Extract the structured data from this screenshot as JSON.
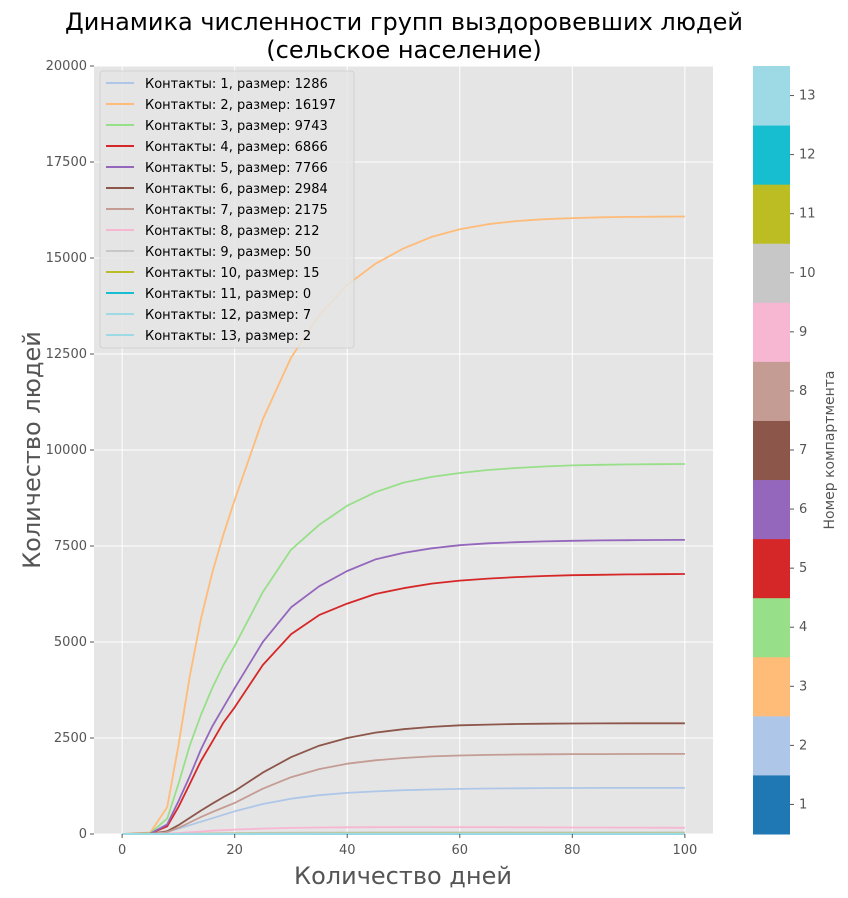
{
  "chart_data": {
    "type": "line",
    "title_line1": "Динамика численности групп выздоровевших людей",
    "title_line2": "(сельское население)",
    "xlabel": "Количество дней",
    "ylabel": "Количество людей",
    "xlim": [
      -5,
      105
    ],
    "ylim": [
      0,
      20000
    ],
    "xticks": [
      0,
      20,
      40,
      60,
      80,
      100
    ],
    "yticks": [
      0,
      2500,
      5000,
      7500,
      10000,
      12500,
      15000,
      17500,
      20000
    ],
    "grid": true,
    "legend_position": "top-left",
    "x": [
      0,
      5,
      8,
      10,
      12,
      14,
      16,
      18,
      20,
      25,
      30,
      35,
      40,
      45,
      50,
      55,
      60,
      65,
      70,
      75,
      80,
      85,
      90,
      95,
      100
    ],
    "series": [
      {
        "name": "Контакты: 1, размер: 1286",
        "color": "#aec7e8",
        "values": [
          0,
          5,
          60,
          140,
          230,
          320,
          410,
          500,
          590,
          780,
          920,
          1010,
          1070,
          1110,
          1140,
          1160,
          1175,
          1185,
          1190,
          1195,
          1198,
          1200,
          1200,
          1200,
          1200
        ]
      },
      {
        "name": "Контакты: 2, размер: 16197",
        "color": "#ffbb78",
        "values": [
          0,
          40,
          700,
          2300,
          4100,
          5600,
          6800,
          7800,
          8700,
          10800,
          12400,
          13500,
          14300,
          14850,
          15250,
          15550,
          15750,
          15880,
          15960,
          16010,
          16040,
          16060,
          16070,
          16075,
          16080
        ]
      },
      {
        "name": "Контакты: 3, размер: 9743",
        "color": "#98df8a",
        "values": [
          0,
          20,
          400,
          1300,
          2300,
          3100,
          3800,
          4400,
          4900,
          6300,
          7400,
          8050,
          8550,
          8900,
          9150,
          9300,
          9400,
          9480,
          9530,
          9570,
          9600,
          9615,
          9625,
          9630,
          9635
        ]
      },
      {
        "name": "Контакты: 4, размер: 6866",
        "color": "#d62728",
        "values": [
          0,
          10,
          200,
          700,
          1300,
          1900,
          2400,
          2900,
          3300,
          4400,
          5200,
          5700,
          6000,
          6250,
          6400,
          6520,
          6600,
          6650,
          6690,
          6720,
          6740,
          6750,
          6760,
          6765,
          6770
        ]
      },
      {
        "name": "Контакты: 5, размер: 7766",
        "color": "#9467bd",
        "values": [
          0,
          10,
          250,
          850,
          1500,
          2200,
          2800,
          3300,
          3800,
          5000,
          5900,
          6450,
          6850,
          7150,
          7320,
          7440,
          7520,
          7570,
          7600,
          7620,
          7635,
          7645,
          7650,
          7655,
          7660
        ]
      },
      {
        "name": "Контакты: 6, размер: 2984",
        "color": "#8c564b",
        "values": [
          0,
          5,
          70,
          230,
          420,
          610,
          790,
          960,
          1120,
          1600,
          2000,
          2300,
          2500,
          2640,
          2730,
          2790,
          2830,
          2850,
          2865,
          2872,
          2877,
          2880,
          2882,
          2883,
          2884
        ]
      },
      {
        "name": "Контакты: 7, размер: 2175",
        "color": "#c49c94",
        "values": [
          0,
          4,
          50,
          160,
          300,
          440,
          570,
          690,
          810,
          1180,
          1480,
          1690,
          1830,
          1920,
          1980,
          2020,
          2045,
          2060,
          2070,
          2076,
          2080,
          2082,
          2084,
          2085,
          2085
        ]
      },
      {
        "name": "Контакты: 8, размер: 212",
        "color": "#f7b6d2",
        "values": [
          0,
          1,
          10,
          25,
          45,
          65,
          85,
          100,
          115,
          140,
          160,
          170,
          175,
          178,
          180,
          180,
          178,
          176,
          174,
          172,
          170,
          168,
          166,
          164,
          162
        ]
      },
      {
        "name": "Контакты: 9, размер: 50",
        "color": "#c7c7c7",
        "values": [
          0,
          0,
          2,
          5,
          9,
          13,
          17,
          20,
          23,
          30,
          35,
          38,
          40,
          41,
          42,
          42,
          42,
          42,
          42,
          42,
          42,
          42,
          42,
          42,
          42
        ]
      },
      {
        "name": "Контакты: 10, размер: 15",
        "color": "#bcbd22",
        "values": [
          0,
          0,
          1,
          2,
          3,
          4,
          5,
          6,
          7,
          9,
          10,
          11,
          12,
          12,
          12,
          12,
          12,
          12,
          12,
          12,
          12,
          12,
          12,
          12,
          12
        ]
      },
      {
        "name": "Контакты: 11, размер: 0",
        "color": "#17becf",
        "values": [
          0,
          0,
          0,
          0,
          0,
          0,
          0,
          0,
          0,
          0,
          0,
          0,
          0,
          0,
          0,
          0,
          0,
          0,
          0,
          0,
          0,
          0,
          0,
          0,
          0
        ]
      },
      {
        "name": "Контакты: 12, размер: 7",
        "color": "#9edae5",
        "values": [
          0,
          0,
          0,
          1,
          1,
          2,
          2,
          3,
          3,
          4,
          5,
          5,
          5,
          6,
          6,
          6,
          6,
          6,
          6,
          6,
          6,
          6,
          6,
          6,
          6
        ]
      },
      {
        "name": "Контакты: 13, размер: 2",
        "color": "#9edae5",
        "values": [
          0,
          0,
          0,
          0,
          0,
          0,
          1,
          1,
          1,
          1,
          1,
          2,
          2,
          2,
          2,
          2,
          2,
          2,
          2,
          2,
          2,
          2,
          2,
          2,
          2
        ]
      }
    ],
    "colorbar": {
      "label": "Номер компартмента",
      "ticks": [
        1,
        2,
        3,
        4,
        5,
        6,
        7,
        8,
        9,
        10,
        11,
        12,
        13
      ],
      "colors": [
        "#1f77b4",
        "#aec7e8",
        "#ffbb78",
        "#98df8a",
        "#d62728",
        "#9467bd",
        "#8c564b",
        "#c49c94",
        "#f7b6d2",
        "#c7c7c7",
        "#bcbd22",
        "#17becf",
        "#9edae5"
      ]
    }
  }
}
